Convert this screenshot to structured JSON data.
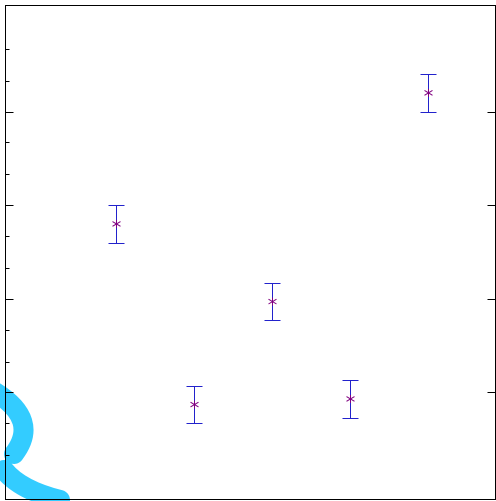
{
  "chart_data": {
    "type": "scatter",
    "title": "",
    "xlabel": "",
    "ylabel": "",
    "xlim": [
      0,
      6
    ],
    "ylim": [
      0,
      5
    ],
    "grid": false,
    "legend": "none",
    "y_major_ticks": [
      1,
      2,
      3,
      4
    ],
    "y_minor_ticks": [
      0.33,
      0.67,
      1.33,
      1.67,
      2.33,
      2.67,
      3.33,
      3.67,
      4.33,
      4.67
    ],
    "series": [
      {
        "x": [
          1.2,
          2.2,
          3.2,
          4.2,
          5.2
        ],
        "y": [
          2.8,
          0.87,
          1.97,
          0.93,
          4.2
        ],
        "yerr": [
          0.2,
          0.2,
          0.2,
          0.2,
          0.2
        ],
        "marker": "asterisk",
        "marker_color": "#800080",
        "errorbar_color": "#2222cc"
      }
    ]
  },
  "colors": {
    "frame": "#000000",
    "watermark": "#33ccff"
  }
}
